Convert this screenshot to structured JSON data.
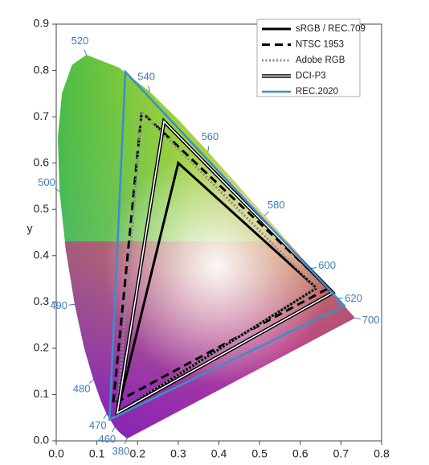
{
  "chart_data": {
    "type": "gamut",
    "ylabel": "y",
    "xlim": [
      0,
      0.8
    ],
    "ylim": [
      0,
      0.9
    ],
    "xticks": [
      {
        "value": 0,
        "label": "0.0"
      },
      0.1,
      0.2,
      0.3,
      0.4,
      0.5,
      0.6,
      0.7,
      0.8
    ],
    "yticks": [
      {
        "value": 0,
        "label": "0.0"
      },
      0.1,
      0.2,
      0.3,
      0.4,
      0.5,
      0.6,
      0.7,
      0.8,
      0.9
    ],
    "legend": "upper right",
    "spectral_locus": {
      "x": [
        0.1741,
        0.1566,
        0.144,
        0.1241,
        0.1096,
        0.0913,
        0.0687,
        0.0454,
        0.0235,
        0.0082,
        0.0039,
        0.0139,
        0.0389,
        0.0743,
        0.1547,
        0.2296,
        0.3016,
        0.3731,
        0.4441,
        0.5125,
        0.5752,
        0.627,
        0.6658,
        0.6915,
        0.719,
        0.7347
      ],
      "y": [
        0.005,
        0.0177,
        0.0297,
        0.0578,
        0.0868,
        0.1327,
        0.2007,
        0.295,
        0.4127,
        0.5384,
        0.6548,
        0.7502,
        0.812,
        0.8338,
        0.8059,
        0.7543,
        0.6923,
        0.6245,
        0.5547,
        0.4866,
        0.4242,
        0.3725,
        0.334,
        0.3083,
        0.2809,
        0.2653
      ],
      "labels": [
        "380",
        null,
        "460",
        "470",
        null,
        "480",
        null,
        "490",
        null,
        "500",
        null,
        null,
        null,
        "520",
        null,
        "540",
        null,
        "560",
        null,
        "580",
        null,
        "600",
        null,
        "620",
        null,
        "700"
      ],
      "label_color": "#3d7ab8"
    },
    "series": [
      {
        "name": "sRGB / REC.709",
        "color": "#000000",
        "style": "solid",
        "x": [
          0.64,
          0.3,
          0.15
        ],
        "y": [
          0.33,
          0.6,
          0.06
        ]
      },
      {
        "name": "NTSC 1953",
        "color": "#000000",
        "style": "dashed",
        "x": [
          0.67,
          0.21,
          0.14
        ],
        "y": [
          0.33,
          0.71,
          0.08
        ]
      },
      {
        "name": "Adobe RGB",
        "color": "#8a8a8a",
        "style": "dotted",
        "x": [
          0.64,
          0.21,
          0.15
        ],
        "y": [
          0.33,
          0.71,
          0.06
        ]
      },
      {
        "name": "DCI-P3",
        "color": "#000000",
        "style": "double",
        "x": [
          0.68,
          0.265,
          0.15
        ],
        "y": [
          0.32,
          0.69,
          0.06
        ]
      },
      {
        "name": "REC.2020",
        "color": "#3a8fc8",
        "style": "solid",
        "x": [
          0.708,
          0.17,
          0.131
        ],
        "y": [
          0.292,
          0.797,
          0.046
        ]
      }
    ]
  }
}
